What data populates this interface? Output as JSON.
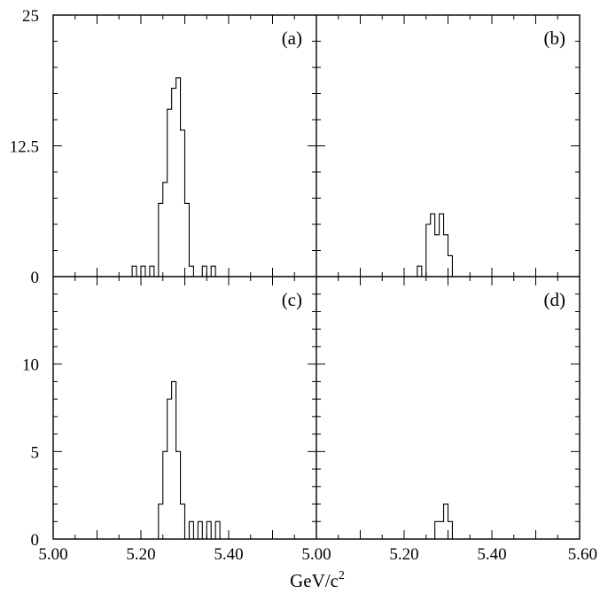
{
  "chart_data": {
    "type": "histogram-grid",
    "bin_width": 0.01,
    "x_axis_title": "GeV/c",
    "x_axis_title_superscript": "2",
    "top_row": {
      "ylim": [
        0,
        25
      ],
      "y_tick_labels": [
        {
          "value": 0,
          "label": "0"
        },
        {
          "value": 12.5,
          "label": "12.5"
        },
        {
          "value": 25,
          "label": "25"
        }
      ]
    },
    "bottom_row": {
      "ylim": [
        0,
        15
      ],
      "y_tick_labels": [
        {
          "value": 0,
          "label": "0"
        },
        {
          "value": 5,
          "label": "5"
        },
        {
          "value": 10,
          "label": "10"
        }
      ]
    },
    "x_tick_labels_left": [
      {
        "value": 5.0,
        "label": "5.00"
      },
      {
        "value": 5.2,
        "label": "5.20"
      },
      {
        "value": 5.4,
        "label": "5.40"
      }
    ],
    "x_tick_labels_right": [
      {
        "value": 5.0,
        "label": "5.00"
      },
      {
        "value": 5.2,
        "label": "5.20"
      },
      {
        "value": 5.4,
        "label": "5.40"
      },
      {
        "value": 5.6,
        "label": "5.60"
      }
    ],
    "panels": [
      {
        "id": "a",
        "label": "(a)",
        "row": "top",
        "col": "left",
        "xlim": [
          5.0,
          5.6
        ],
        "bin_start": 5.18,
        "counts": [
          1,
          0,
          1,
          0,
          1,
          0,
          7,
          9,
          16,
          18,
          19,
          14,
          7,
          1,
          0,
          0,
          1,
          0,
          1
        ]
      },
      {
        "id": "b",
        "label": "(b)",
        "row": "top",
        "col": "right",
        "xlim": [
          5.0,
          5.6
        ],
        "bin_start": 5.23,
        "counts": [
          1,
          0,
          5,
          6,
          4,
          6,
          4,
          2,
          0
        ]
      },
      {
        "id": "c",
        "label": "(c)",
        "row": "bottom",
        "col": "left",
        "xlim": [
          5.0,
          5.6
        ],
        "bin_start": 5.24,
        "counts": [
          2,
          5,
          8,
          9,
          5,
          2,
          0,
          1,
          0,
          1,
          0,
          1,
          0,
          1
        ]
      },
      {
        "id": "d",
        "label": "(d)",
        "row": "bottom",
        "col": "right",
        "xlim": [
          5.0,
          5.6
        ],
        "bin_start": 5.27,
        "counts": [
          1,
          1,
          2,
          1
        ]
      }
    ]
  }
}
